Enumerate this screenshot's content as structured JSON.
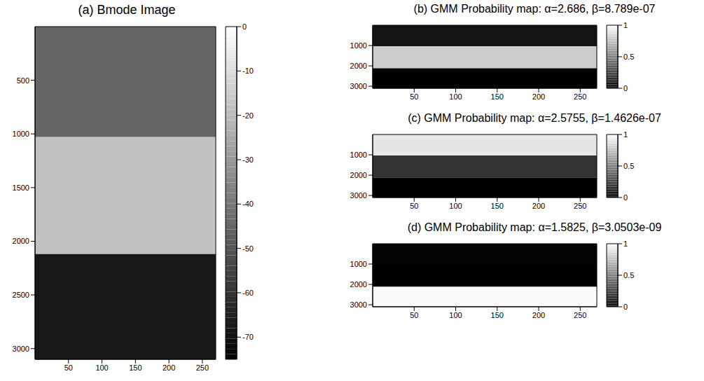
{
  "chart_data": [
    {
      "type": "heatmap",
      "title": "(a) Bmode Image",
      "xlim": [
        0,
        270
      ],
      "ylim": [
        0,
        3100
      ],
      "xticks": [
        50,
        100,
        150,
        200,
        250
      ],
      "yticks": [
        500,
        1000,
        1500,
        2000,
        2500,
        3000
      ],
      "cells": {
        "x_edges": [
          0,
          270
        ],
        "y_edges": [
          0,
          1030,
          2120,
          3100
        ],
        "values": [
          [
            -45
          ],
          [
            -18
          ],
          [
            -68
          ]
        ]
      },
      "colorbar": {
        "range": [
          -75,
          0
        ],
        "ticks": [
          0,
          -10,
          -20,
          -30,
          -40,
          -50,
          -60,
          -70
        ]
      }
    },
    {
      "type": "heatmap",
      "title": "(b) GMM Probability map: α=2.686, β=8.789e-07",
      "xlim": [
        0,
        270
      ],
      "ylim": [
        0,
        3100
      ],
      "xticks": [
        50,
        100,
        150,
        200,
        250
      ],
      "yticks": [
        1000,
        2000,
        3000
      ],
      "cells": {
        "x_edges": [
          0,
          270
        ],
        "y_edges": [
          0,
          1030,
          2120,
          3100
        ],
        "values": [
          [
            0.08
          ],
          [
            0.8
          ],
          [
            0
          ]
        ]
      },
      "colorbar": {
        "range": [
          0,
          1
        ],
        "ticks": [
          0,
          0.5,
          1
        ]
      }
    },
    {
      "type": "heatmap",
      "title": "(c) GMM Probability map: α=2.5755, β=1.4626e-07",
      "xlim": [
        0,
        270
      ],
      "ylim": [
        0,
        3100
      ],
      "xticks": [
        50,
        100,
        150,
        200,
        250
      ],
      "yticks": [
        1000,
        2000,
        3000
      ],
      "cells": {
        "x_edges": [
          0,
          270
        ],
        "y_edges": [
          0,
          1030,
          2120,
          3100
        ],
        "values": [
          [
            0.9
          ],
          [
            0.2
          ],
          [
            0
          ]
        ]
      },
      "colorbar": {
        "range": [
          0,
          1
        ],
        "ticks": [
          0,
          0.5,
          1
        ]
      }
    },
    {
      "type": "heatmap",
      "title": "(d) GMM Probability map: α=1.5825, β=3.0503e-09",
      "xlim": [
        0,
        270
      ],
      "ylim": [
        0,
        3100
      ],
      "xticks": [
        50,
        100,
        150,
        200,
        250
      ],
      "yticks": [
        1000,
        2000,
        3000
      ],
      "cells": {
        "x_edges": [
          0,
          270
        ],
        "y_edges": [
          0,
          1030,
          2120,
          3100
        ],
        "values": [
          [
            0.02
          ],
          [
            0
          ],
          [
            0.98
          ]
        ]
      },
      "colorbar": {
        "range": [
          0,
          1
        ],
        "ticks": [
          0,
          0.5,
          1
        ]
      }
    }
  ]
}
